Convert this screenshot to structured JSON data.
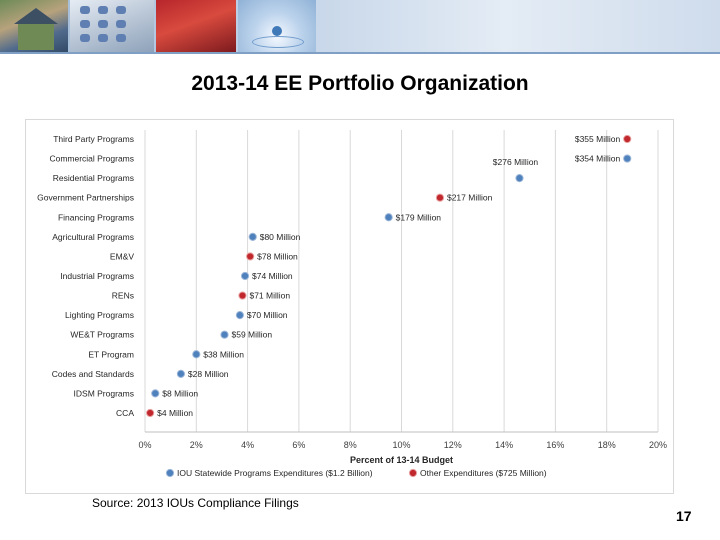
{
  "slide": {
    "title": "2013-14 EE Portfolio Organization",
    "source": "Source: 2013 IOUs Compliance Filings",
    "page_number": "17"
  },
  "colors": {
    "series_ious": "#4f81bd",
    "series_other": "#c0282d",
    "grid": "#d9d9d9"
  },
  "chart_data": {
    "type": "scatter",
    "title": "",
    "xlabel": "Percent of 13-14 Budget",
    "ylabel": "",
    "xlim": [
      0,
      20
    ],
    "x_ticks": [
      "0%",
      "2%",
      "4%",
      "6%",
      "8%",
      "10%",
      "12%",
      "14%",
      "16%",
      "18%",
      "20%"
    ],
    "categories": [
      "Third Party Programs",
      "Commercial Programs",
      "Residential Programs",
      "Government Partnerships",
      "Financing Programs",
      "Agricultural Programs",
      "EM&V",
      "Industrial Programs",
      "RENs",
      "Lighting Programs",
      "WE&T Programs",
      "ET Program",
      "Codes and Standards",
      "IDSM Programs",
      "CCA"
    ],
    "series": [
      {
        "name": "IOU Statewide Programs Expenditures ($1.2 Billion)",
        "points": [
          {
            "category": "Commercial Programs",
            "x": 18.8,
            "label": "$354 Million"
          },
          {
            "category": "Residential Programs",
            "x": 14.6,
            "label": "$276 Million"
          },
          {
            "category": "Financing Programs",
            "x": 9.5,
            "label": "$179 Million"
          },
          {
            "category": "Agricultural Programs",
            "x": 4.2,
            "label": "$80 Million"
          },
          {
            "category": "Industrial Programs",
            "x": 3.9,
            "label": "$74 Million"
          },
          {
            "category": "Lighting Programs",
            "x": 3.7,
            "label": "$70 Million"
          },
          {
            "category": "WE&T Programs",
            "x": 3.1,
            "label": "$59 Million"
          },
          {
            "category": "ET Program",
            "x": 2.0,
            "label": "$38 Million"
          },
          {
            "category": "Codes and Standards",
            "x": 1.4,
            "label": "$28 Million"
          },
          {
            "category": "IDSM Programs",
            "x": 0.4,
            "label": "$8 Million"
          }
        ]
      },
      {
        "name": "Other Expenditures ($725 Million)",
        "points": [
          {
            "category": "Third Party Programs",
            "x": 18.8,
            "label": "$355 Million"
          },
          {
            "category": "Government Partnerships",
            "x": 11.5,
            "label": "$217 Million"
          },
          {
            "category": "EM&V",
            "x": 4.1,
            "label": "$78 Million"
          },
          {
            "category": "RENs",
            "x": 3.8,
            "label": "$71 Million"
          },
          {
            "category": "CCA",
            "x": 0.2,
            "label": "$4 Million"
          }
        ]
      }
    ]
  }
}
